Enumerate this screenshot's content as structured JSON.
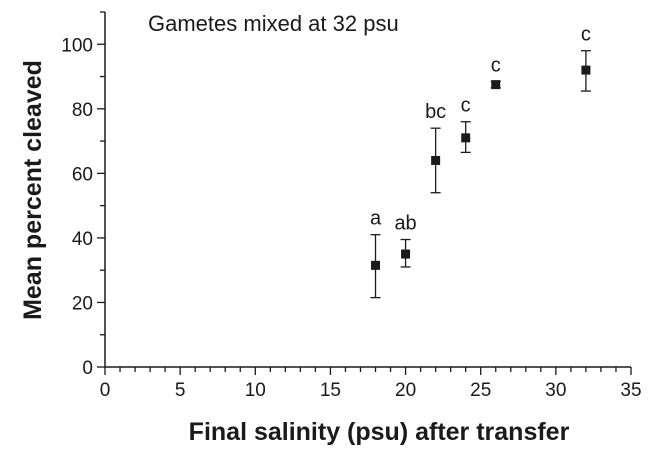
{
  "chart_data": {
    "type": "scatter",
    "title": "Gametes mixed at 32 psu",
    "xlabel": "Final salinity (psu) after transfer",
    "ylabel": "Mean percent cleaved",
    "xlim": [
      0,
      35
    ],
    "ylim": [
      0,
      110
    ],
    "x_ticks": [
      0,
      5,
      10,
      15,
      20,
      25,
      30,
      35
    ],
    "y_ticks": [
      0,
      20,
      40,
      60,
      80,
      100
    ],
    "grid": false,
    "points": [
      {
        "x": 18,
        "y": 31.5,
        "err_low": 21.5,
        "err_high": 41,
        "label": "a"
      },
      {
        "x": 20,
        "y": 35,
        "err_low": 31,
        "err_high": 39.5,
        "label": "ab"
      },
      {
        "x": 22,
        "y": 64,
        "err_low": 54,
        "err_high": 74,
        "label": "bc"
      },
      {
        "x": 24,
        "y": 71,
        "err_low": 66.5,
        "err_high": 76,
        "label": "c"
      },
      {
        "x": 26,
        "y": 87.5,
        "err_low": 86.5,
        "err_high": 88.5,
        "label": "c"
      },
      {
        "x": 32,
        "y": 92,
        "err_low": 85.5,
        "err_high": 98,
        "label": "c"
      }
    ],
    "colors": {
      "marker": "#1a1a1a",
      "axis": "#1a1a1a"
    }
  }
}
